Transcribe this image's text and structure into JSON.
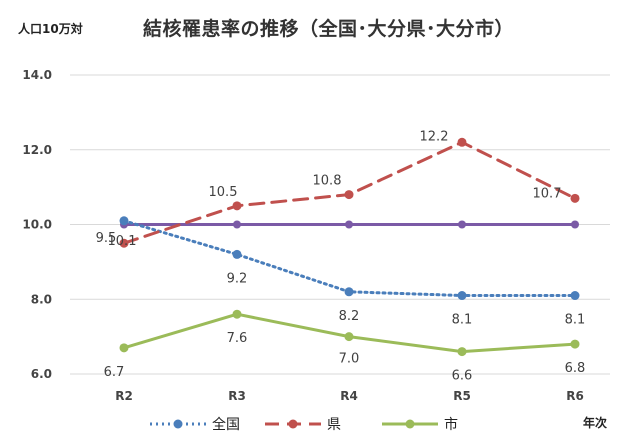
{
  "chart_data": {
    "type": "line",
    "title": "結核罹患率の推移（全国･大分県･大分市）",
    "ylabel": "人口10万対",
    "xlabel": "年次",
    "categories": [
      "R2",
      "R3",
      "R4",
      "R5",
      "R6"
    ],
    "ylim": [
      6.0,
      14.0
    ],
    "yticks": [
      "6.0",
      "8.0",
      "10.0",
      "12.0",
      "14.0"
    ],
    "grid": true,
    "legend_position": "bottom",
    "reference_line": {
      "value": 10.0,
      "color": "#7b5aa6"
    },
    "series": [
      {
        "name": "全国",
        "values": [
          10.1,
          9.2,
          8.2,
          8.1,
          8.1
        ],
        "labels": [
          "10.1",
          "9.2",
          "8.2",
          "8.1",
          "8.1"
        ],
        "color": "#4a7ebb",
        "style": "dotted"
      },
      {
        "name": "県",
        "values": [
          9.5,
          10.5,
          10.8,
          12.2,
          10.7
        ],
        "labels": [
          "9.5",
          "10.5",
          "10.8",
          "12.2",
          "10.7"
        ],
        "color": "#c0504d",
        "style": "dashed"
      },
      {
        "name": "市",
        "values": [
          6.7,
          7.6,
          7.0,
          6.6,
          6.8
        ],
        "labels": [
          "6.7",
          "7.6",
          "7.0",
          "6.6",
          "6.8"
        ],
        "color": "#9bbb59",
        "style": "solid"
      }
    ]
  }
}
